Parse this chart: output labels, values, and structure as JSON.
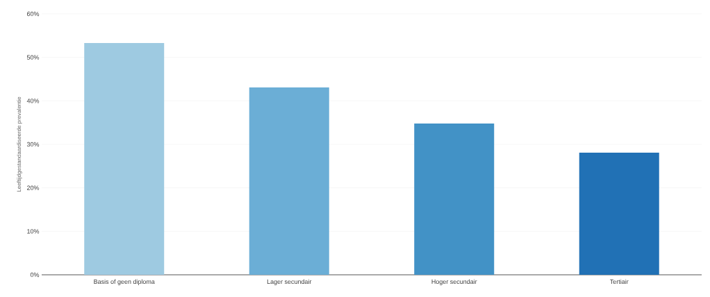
{
  "chart_data": {
    "type": "bar",
    "ylabel": "Leeftijdgestandaardiseerde prevalentie",
    "categories": [
      "Basis of geen diploma",
      "Lager secundair",
      "Hoger secundair",
      "Tertiair"
    ],
    "values": [
      53.3,
      43.1,
      34.8,
      28.1
    ],
    "colors": [
      "#9ecae1",
      "#6baed6",
      "#4292c6",
      "#2171b5"
    ],
    "ylim": [
      0,
      60
    ],
    "yticks": [
      {
        "value": 0,
        "label": "0%"
      },
      {
        "value": 10,
        "label": "10%"
      },
      {
        "value": 20,
        "label": "20%"
      },
      {
        "value": 30,
        "label": "30%"
      },
      {
        "value": 40,
        "label": "40%"
      },
      {
        "value": 50,
        "label": "50%"
      },
      {
        "value": 60,
        "label": "60%"
      }
    ],
    "grid": "y"
  }
}
